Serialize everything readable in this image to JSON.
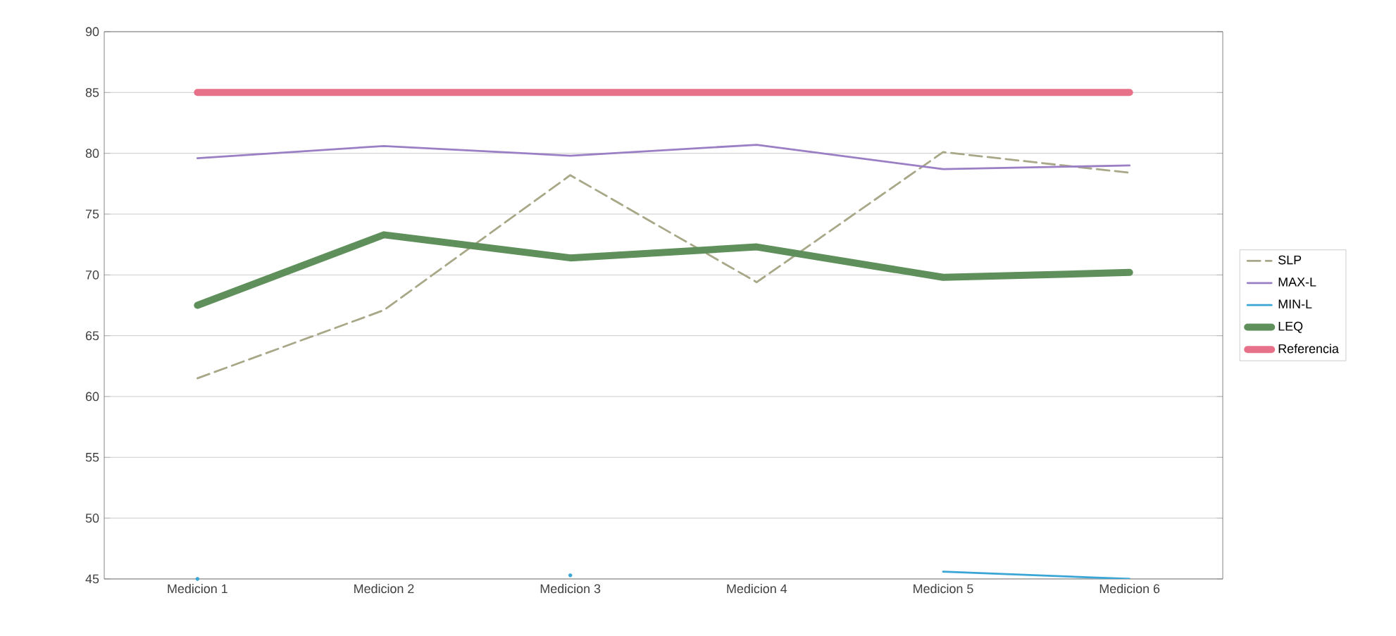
{
  "chart_data": {
    "type": "line",
    "categories": [
      "Medicion 1",
      "Medicion 2",
      "Medicion 3",
      "Medicion 4",
      "Medicion 5",
      "Medicion 6"
    ],
    "series": [
      {
        "name": "SLP",
        "color": "#a8a888",
        "line_style": "dashed",
        "values": [
          61.5,
          67.1,
          78.2,
          69.4,
          80.1,
          78.4
        ]
      },
      {
        "name": "MAX-L",
        "color": "#9b7fc4",
        "line_style": "solid",
        "values": [
          79.6,
          80.6,
          79.8,
          80.7,
          78.7,
          79.0
        ]
      },
      {
        "name": "MIN-L",
        "color": "#3aa6d6",
        "line_style": "solid",
        "values": [
          45.0,
          null,
          45.3,
          null,
          45.6,
          45.0
        ]
      },
      {
        "name": "LEQ",
        "color": "#5f8f5a",
        "line_style": "solid",
        "values": [
          67.5,
          73.3,
          71.4,
          72.3,
          69.8,
          70.2
        ]
      },
      {
        "name": "Referencia",
        "color": "#e8718a",
        "line_style": "solid",
        "values": [
          85,
          85,
          85,
          85,
          85,
          85
        ]
      }
    ],
    "ylim": [
      45,
      90
    ],
    "yticks": [
      45,
      50,
      55,
      60,
      65,
      70,
      75,
      80,
      85,
      90
    ],
    "grid": "y",
    "legend": "right",
    "marker": "none"
  }
}
